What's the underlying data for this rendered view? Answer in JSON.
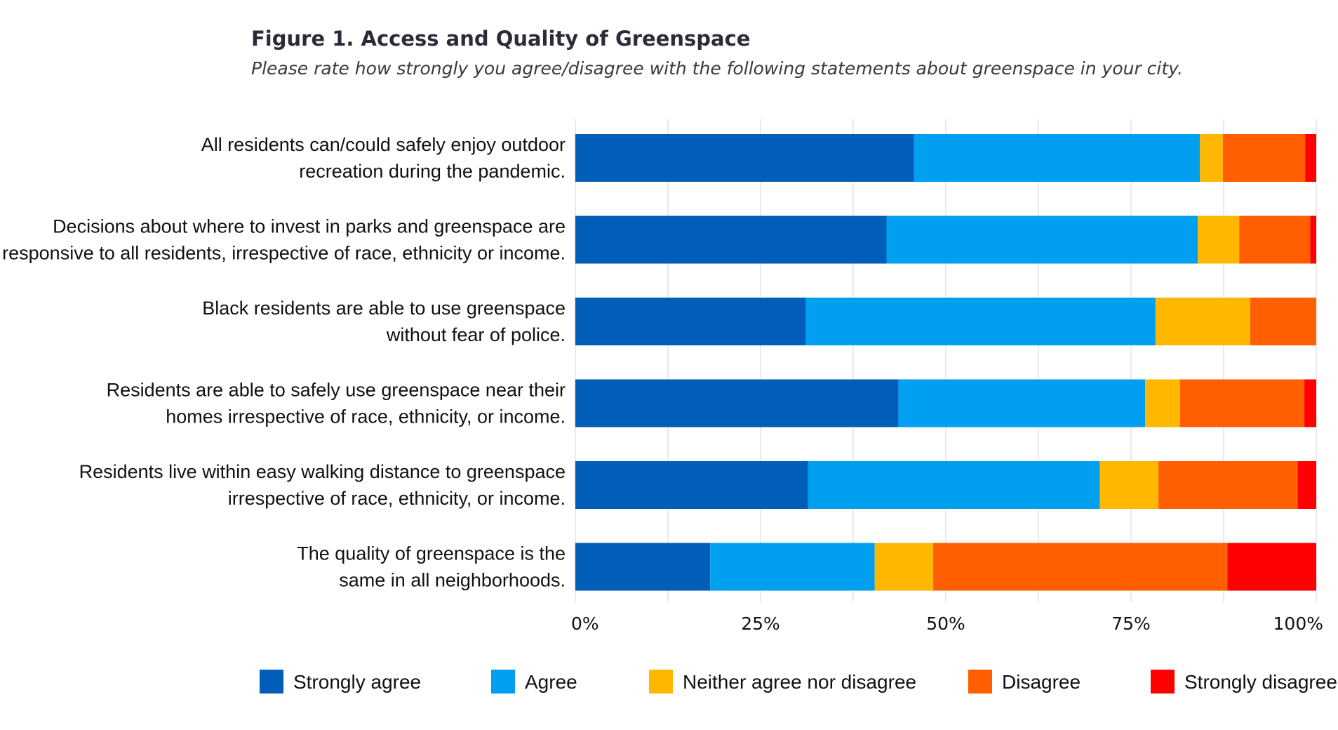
{
  "header": {
    "title": "Figure 1. Access and Quality of Greenspace",
    "subtitle": "Please rate how strongly you agree/disagree with the following statements about greenspace in your city."
  },
  "chart_data": {
    "type": "bar",
    "orientation": "horizontal",
    "stacked": true,
    "title": "Figure 1. Access and Quality of Greenspace",
    "subtitle": "Please rate how strongly you agree/disagree with the following statements about greenspace in your city.",
    "categories": [
      [
        "All residents can/could safely enjoy outdoor",
        "recreation during the pandemic."
      ],
      [
        "Decisions about where to invest in parks and greenspace are",
        "responsive to all residents, irrespective of race, ethnicity or income."
      ],
      [
        "Black residents are able to use greenspace",
        "without fear of police."
      ],
      [
        "Residents are able to safely use greenspace near their",
        "homes irrespective of race, ethnicity, or income."
      ],
      [
        "Residents live within easy walking distance to greenspace",
        "irrespective of race, ethnicity, or income."
      ],
      [
        "The quality of greenspace is the",
        "same in all neighborhoods."
      ]
    ],
    "series": [
      {
        "name": "Strongly agree",
        "color": "#005EB8",
        "values": [
          45.7,
          42.0,
          31.1,
          43.6,
          31.4,
          18.2
        ]
      },
      {
        "name": "Agree",
        "color": "#009FEF",
        "values": [
          38.6,
          42.0,
          47.2,
          33.3,
          39.4,
          22.2
        ]
      },
      {
        "name": "Neither agree nor disagree",
        "color": "#FFB700",
        "values": [
          3.1,
          5.6,
          12.8,
          4.7,
          7.9,
          7.9
        ]
      },
      {
        "name": "Disagree",
        "color": "#FF5F00",
        "values": [
          11.1,
          9.6,
          8.9,
          16.8,
          18.8,
          39.7
        ]
      },
      {
        "name": "Strongly disagree",
        "color": "#FF0000",
        "values": [
          1.5,
          0.8,
          0.0,
          1.6,
          2.5,
          12.0
        ]
      }
    ],
    "xaxis": {
      "ticks": [
        0,
        25,
        50,
        75,
        100
      ],
      "tick_labels": [
        "0%",
        "25%",
        "50%",
        "75%",
        "100%"
      ],
      "range": [
        0,
        100
      ]
    },
    "grid": true,
    "legend": "bottom"
  }
}
